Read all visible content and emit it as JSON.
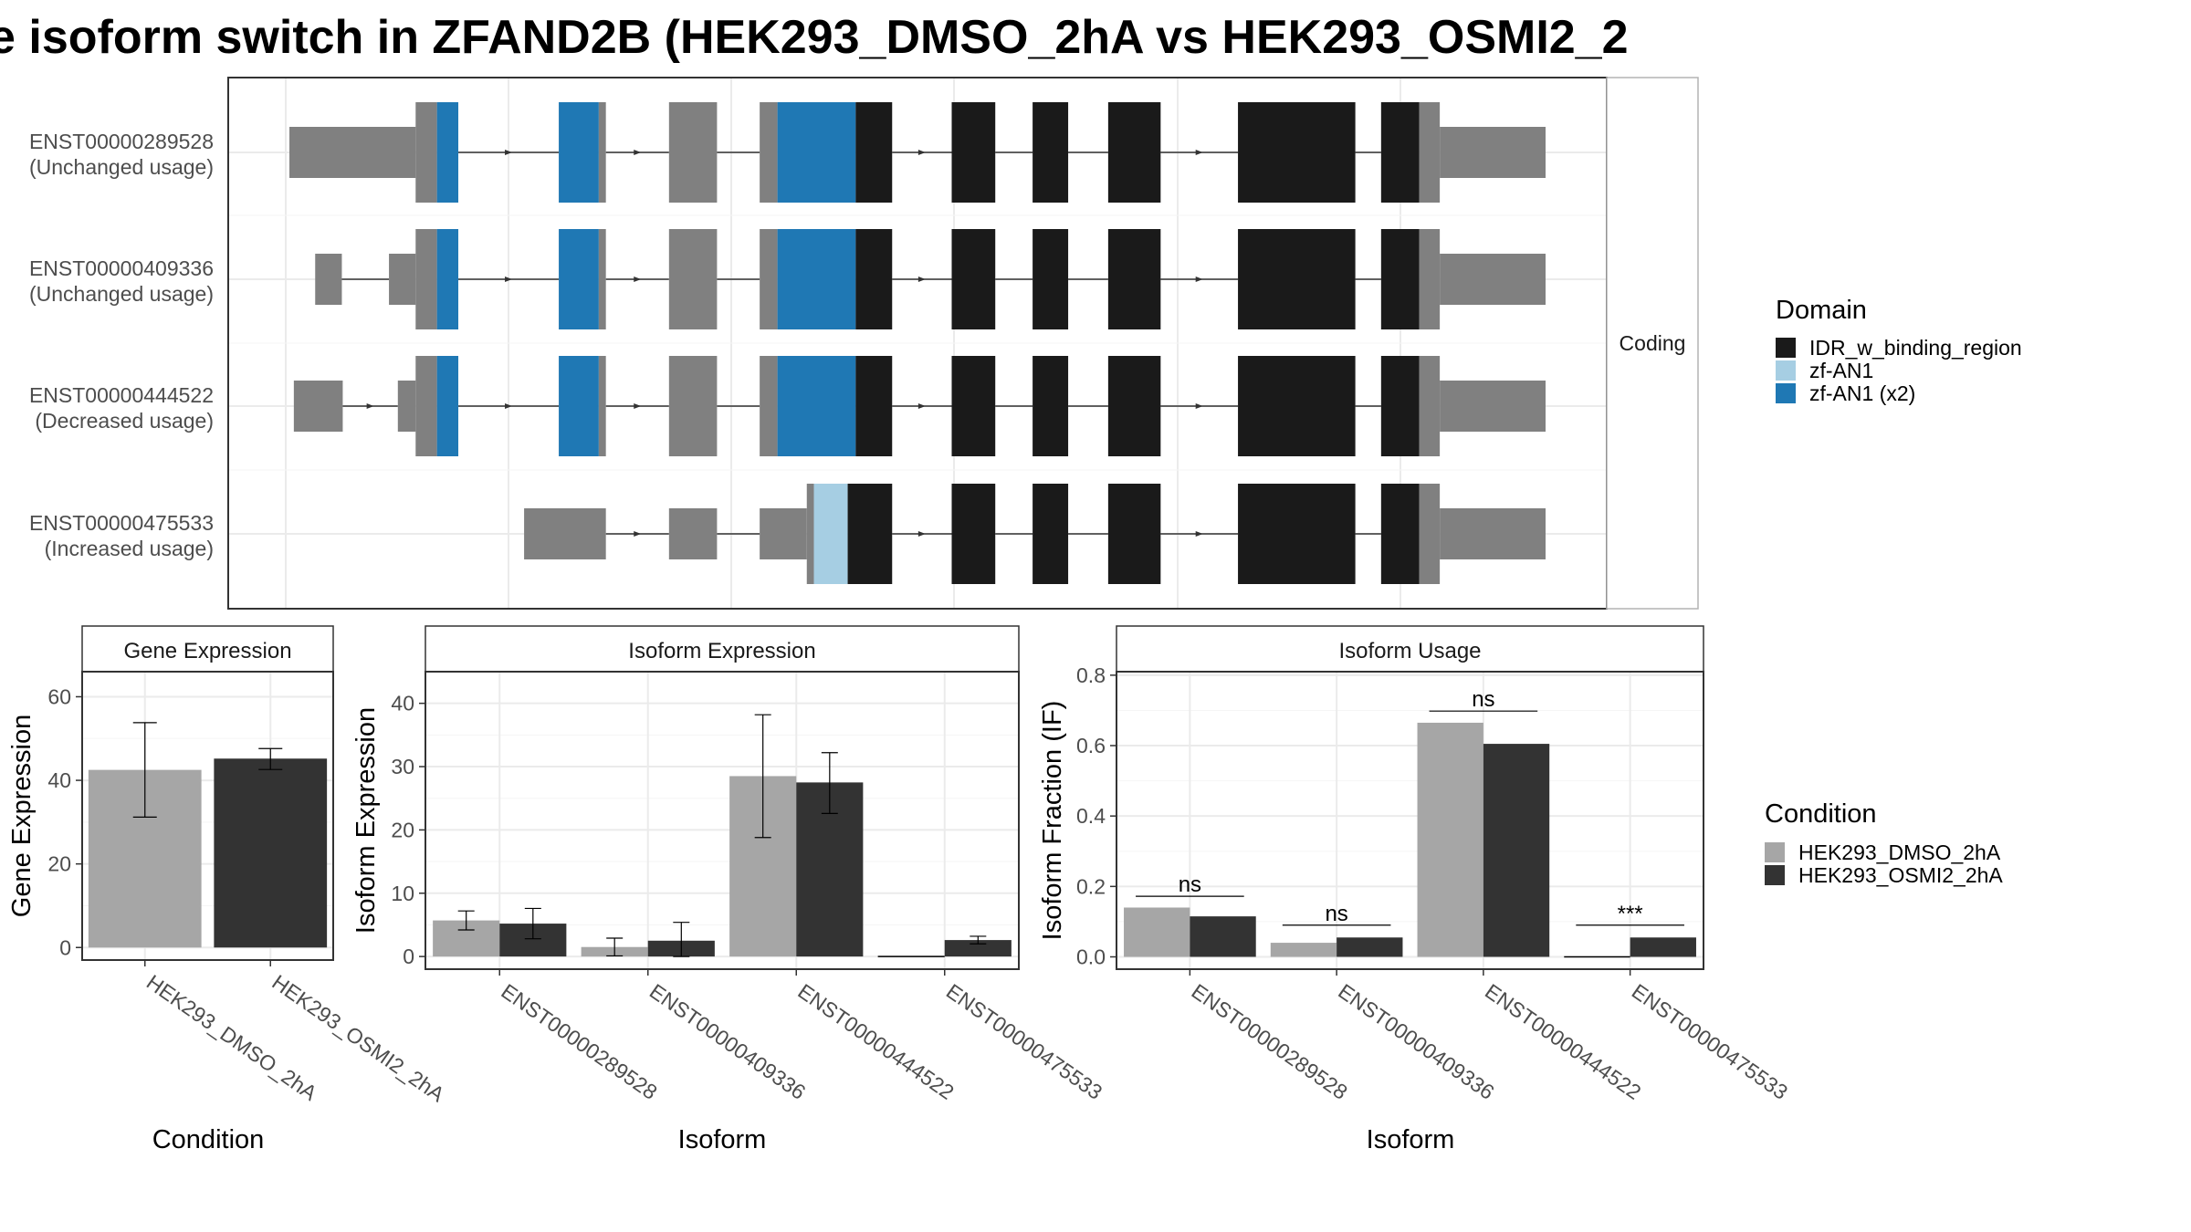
{
  "title": "e isoform switch in ZFAND2B (HEK293_DMSO_2hA vs HEK293_OSMI2_2",
  "colors": {
    "utr": "#808080",
    "idr": "#1a1a1a",
    "zfan1": "#a6cee3",
    "zfan1x2": "#1f78b4",
    "dmso": "#a6a6a6",
    "osmi2": "#333333",
    "grid": "#ebebeb",
    "panel_border": "#333333",
    "strip_border": "#b3b3b3"
  },
  "structure": {
    "facet_label": "Coding",
    "transcripts": [
      {
        "id": "ENST00000289528",
        "usage": "(Unchanged usage)",
        "exons": [
          {
            "s": 0,
            "e": 142,
            "t": "utr",
            "h": "s"
          },
          {
            "s": 142,
            "e": 166,
            "t": "utr",
            "h": "t"
          },
          {
            "s": 166,
            "e": 190,
            "t": "zfan1x2",
            "h": "t"
          },
          {
            "s": 303,
            "e": 348,
            "t": "zfan1x2",
            "h": "t"
          },
          {
            "s": 348,
            "e": 356,
            "t": "utr",
            "h": "t"
          },
          {
            "s": 427,
            "e": 481,
            "t": "utr",
            "h": "t"
          },
          {
            "s": 529,
            "e": 549,
            "t": "utr",
            "h": "t"
          },
          {
            "s": 549,
            "e": 637,
            "t": "zfan1x2",
            "h": "t"
          },
          {
            "s": 637,
            "e": 678,
            "t": "idr",
            "h": "t"
          },
          {
            "s": 745,
            "e": 794,
            "t": "idr",
            "h": "t"
          },
          {
            "s": 836,
            "e": 876,
            "t": "idr",
            "h": "t"
          },
          {
            "s": 921,
            "e": 980,
            "t": "idr",
            "h": "t"
          },
          {
            "s": 1067,
            "e": 1199,
            "t": "idr",
            "h": "t"
          },
          {
            "s": 1228,
            "e": 1271,
            "t": "idr",
            "h": "t"
          },
          {
            "s": 1271,
            "e": 1294,
            "t": "utr",
            "h": "t"
          },
          {
            "s": 1294,
            "e": 1413,
            "t": "utr",
            "h": "s"
          }
        ]
      },
      {
        "id": "ENST00000409336",
        "usage": "(Unchanged usage)",
        "exons": [
          {
            "s": 29,
            "e": 59,
            "t": "utr",
            "h": "s"
          },
          {
            "s": 112,
            "e": 142,
            "t": "utr",
            "h": "s"
          },
          {
            "s": 142,
            "e": 166,
            "t": "utr",
            "h": "t"
          },
          {
            "s": 166,
            "e": 190,
            "t": "zfan1x2",
            "h": "t"
          },
          {
            "s": 303,
            "e": 348,
            "t": "zfan1x2",
            "h": "t"
          },
          {
            "s": 348,
            "e": 356,
            "t": "utr",
            "h": "t"
          },
          {
            "s": 427,
            "e": 481,
            "t": "utr",
            "h": "t"
          },
          {
            "s": 529,
            "e": 549,
            "t": "utr",
            "h": "t"
          },
          {
            "s": 549,
            "e": 637,
            "t": "zfan1x2",
            "h": "t"
          },
          {
            "s": 637,
            "e": 678,
            "t": "idr",
            "h": "t"
          },
          {
            "s": 745,
            "e": 794,
            "t": "idr",
            "h": "t"
          },
          {
            "s": 836,
            "e": 876,
            "t": "idr",
            "h": "t"
          },
          {
            "s": 921,
            "e": 980,
            "t": "idr",
            "h": "t"
          },
          {
            "s": 1067,
            "e": 1199,
            "t": "idr",
            "h": "t"
          },
          {
            "s": 1228,
            "e": 1271,
            "t": "idr",
            "h": "t"
          },
          {
            "s": 1271,
            "e": 1294,
            "t": "utr",
            "h": "t"
          },
          {
            "s": 1294,
            "e": 1413,
            "t": "utr",
            "h": "s"
          }
        ]
      },
      {
        "id": "ENST00000444522",
        "usage": "(Decreased usage)",
        "exons": [
          {
            "s": 5,
            "e": 60,
            "t": "utr",
            "h": "s"
          },
          {
            "s": 122,
            "e": 142,
            "t": "utr",
            "h": "s"
          },
          {
            "s": 142,
            "e": 166,
            "t": "utr",
            "h": "t"
          },
          {
            "s": 166,
            "e": 190,
            "t": "zfan1x2",
            "h": "t"
          },
          {
            "s": 303,
            "e": 348,
            "t": "zfan1x2",
            "h": "t"
          },
          {
            "s": 348,
            "e": 356,
            "t": "utr",
            "h": "t"
          },
          {
            "s": 427,
            "e": 481,
            "t": "utr",
            "h": "t"
          },
          {
            "s": 529,
            "e": 549,
            "t": "utr",
            "h": "t"
          },
          {
            "s": 549,
            "e": 637,
            "t": "zfan1x2",
            "h": "t"
          },
          {
            "s": 637,
            "e": 678,
            "t": "idr",
            "h": "t"
          },
          {
            "s": 745,
            "e": 794,
            "t": "idr",
            "h": "t"
          },
          {
            "s": 836,
            "e": 876,
            "t": "idr",
            "h": "t"
          },
          {
            "s": 921,
            "e": 980,
            "t": "idr",
            "h": "t"
          },
          {
            "s": 1067,
            "e": 1199,
            "t": "idr",
            "h": "t"
          },
          {
            "s": 1228,
            "e": 1271,
            "t": "idr",
            "h": "t"
          },
          {
            "s": 1271,
            "e": 1294,
            "t": "utr",
            "h": "t"
          },
          {
            "s": 1294,
            "e": 1413,
            "t": "utr",
            "h": "s"
          }
        ]
      },
      {
        "id": "ENST00000475533",
        "usage": "(Increased usage)",
        "exons": [
          {
            "s": 264,
            "e": 356,
            "t": "utr",
            "h": "s"
          },
          {
            "s": 427,
            "e": 481,
            "t": "utr",
            "h": "s"
          },
          {
            "s": 529,
            "e": 582,
            "t": "utr",
            "h": "s"
          },
          {
            "s": 582,
            "e": 590,
            "t": "utr",
            "h": "t"
          },
          {
            "s": 590,
            "e": 628,
            "t": "zfan1",
            "h": "t"
          },
          {
            "s": 628,
            "e": 678,
            "t": "idr",
            "h": "t"
          },
          {
            "s": 745,
            "e": 794,
            "t": "idr",
            "h": "t"
          },
          {
            "s": 836,
            "e": 876,
            "t": "idr",
            "h": "t"
          },
          {
            "s": 921,
            "e": 980,
            "t": "idr",
            "h": "t"
          },
          {
            "s": 1067,
            "e": 1199,
            "t": "idr",
            "h": "t"
          },
          {
            "s": 1228,
            "e": 1271,
            "t": "idr",
            "h": "t"
          },
          {
            "s": 1271,
            "e": 1294,
            "t": "utr",
            "h": "t"
          },
          {
            "s": 1294,
            "e": 1413,
            "t": "utr",
            "h": "s"
          }
        ]
      }
    ]
  },
  "domain_legend": {
    "title": "Domain",
    "items": [
      {
        "label": "IDR_w_binding_region",
        "key": "idr"
      },
      {
        "label": "zf-AN1",
        "key": "zfan1"
      },
      {
        "label": "zf-AN1 (x2)",
        "key": "zfan1x2"
      }
    ]
  },
  "condition_legend": {
    "title": "Condition",
    "items": [
      {
        "label": "HEK293_DMSO_2hA",
        "key": "dmso"
      },
      {
        "label": "HEK293_OSMI2_2hA",
        "key": "osmi2"
      }
    ]
  },
  "chart_data": [
    {
      "type": "bar",
      "title": "Gene Expression",
      "xlabel": "Condition",
      "ylabel": "Gene Expression",
      "categories": [
        "HEK293_DMSO_2hA",
        "HEK293_OSMI2_2hA"
      ],
      "values": [
        42.5,
        45.2
      ],
      "errors": [
        [
          31.2,
          53.8
        ],
        [
          42.6,
          47.6
        ]
      ],
      "ylim": [
        -3,
        66
      ],
      "yticks": [
        0,
        20,
        40,
        60
      ]
    },
    {
      "type": "bar",
      "title": "Isoform Expression",
      "xlabel": "Isoform",
      "ylabel": "Isoform Expression",
      "categories": [
        "ENST00000289528",
        "ENST00000409336",
        "ENST00000444522",
        "ENST00000475533"
      ],
      "series": [
        {
          "name": "HEK293_DMSO_2hA",
          "values": [
            5.7,
            1.5,
            28.5,
            0.0
          ],
          "errors": [
            [
              4.2,
              7.2
            ],
            [
              0.1,
              2.9
            ],
            [
              18.8,
              38.2
            ],
            [
              0.0,
              0.0
            ]
          ]
        },
        {
          "name": "HEK293_OSMI2_2hA",
          "values": [
            5.2,
            2.5,
            27.5,
            2.6
          ],
          "errors": [
            [
              2.8,
              7.6
            ],
            [
              0.0,
              5.4
            ],
            [
              22.6,
              32.2
            ],
            [
              2.0,
              3.2
            ]
          ]
        }
      ],
      "ylim": [
        -2,
        45
      ],
      "yticks": [
        0,
        10,
        20,
        30,
        40
      ]
    },
    {
      "type": "bar",
      "title": "Isoform Usage",
      "xlabel": "Isoform",
      "ylabel": "Isoform Fraction (IF)",
      "categories": [
        "ENST00000289528",
        "ENST00000409336",
        "ENST00000444522",
        "ENST00000475533"
      ],
      "series": [
        {
          "name": "HEK293_DMSO_2hA",
          "values": [
            0.14,
            0.04,
            0.665,
            0.0
          ]
        },
        {
          "name": "HEK293_OSMI2_2hA",
          "values": [
            0.115,
            0.055,
            0.605,
            0.055
          ]
        }
      ],
      "significance": [
        {
          "label": "ns",
          "y": 0.172
        },
        {
          "label": "ns",
          "y": 0.09
        },
        {
          "label": "ns",
          "y": 0.698
        },
        {
          "label": "***",
          "y": 0.09
        }
      ],
      "ylim": [
        -0.035,
        0.81
      ],
      "yticks": [
        0.0,
        0.2,
        0.4,
        0.6,
        0.8
      ],
      "ytick_labels": [
        "0.0",
        "0.2",
        "0.4",
        "0.6",
        "0.8"
      ]
    }
  ]
}
